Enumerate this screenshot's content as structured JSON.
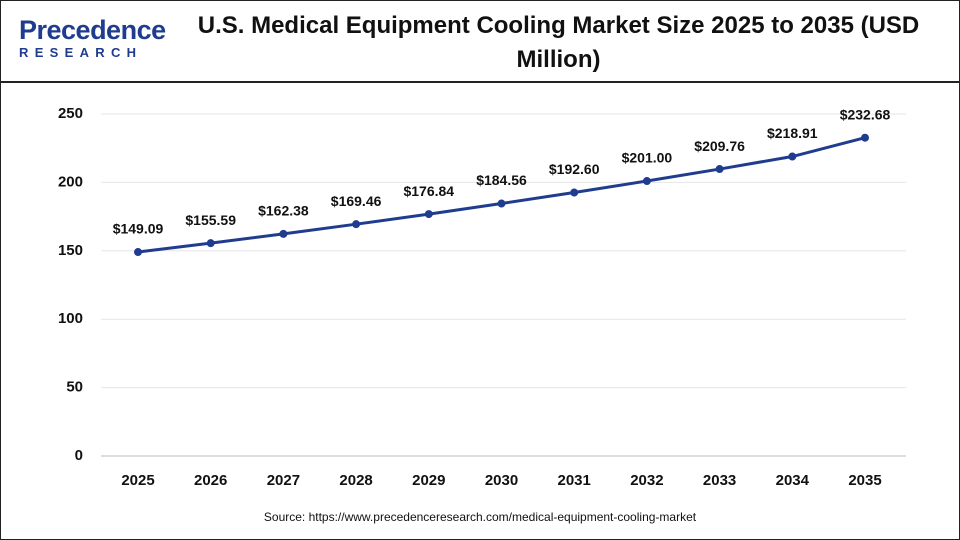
{
  "logo": {
    "name": "Precedence",
    "tagline": "RESEARCH"
  },
  "chart_data": {
    "type": "line",
    "title": "U.S. Medical Equipment Cooling Market Size 2025 to 2035 (USD Million)",
    "categories": [
      "2025",
      "2026",
      "2027",
      "2028",
      "2029",
      "2030",
      "2031",
      "2032",
      "2033",
      "2034",
      "2035"
    ],
    "series": [
      {
        "name": "U.S. Medical Equipment Cooling Market Size",
        "color": "#1f3c8f",
        "values": [
          149.09,
          155.59,
          162.38,
          169.46,
          176.84,
          184.56,
          192.6,
          201.0,
          209.76,
          218.91,
          232.68
        ],
        "value_labels": [
          "$149.09",
          "$155.59",
          "$162.38",
          "$169.46",
          "$176.84",
          "$184.56",
          "$192.60",
          "$201.00",
          "$209.76",
          "$218.91",
          "$232.68"
        ]
      }
    ],
    "ylim": [
      0,
      250
    ],
    "yticks": [
      0,
      50,
      100,
      150,
      200,
      250
    ],
    "grid": true,
    "source": "Source: https://www.precedenceresearch.com/medical-equipment-cooling-market"
  }
}
